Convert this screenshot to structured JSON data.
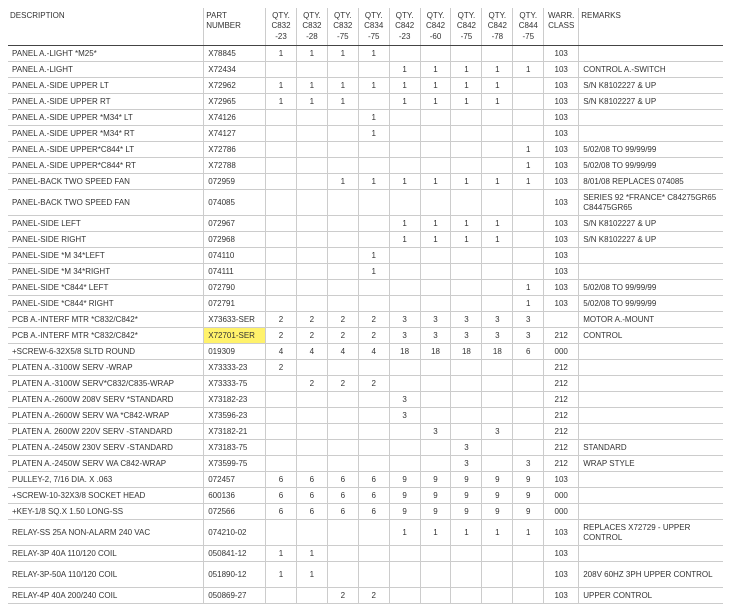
{
  "headers": {
    "desc": "DESCRIPTION",
    "part": "PART\nNUMBER",
    "q1": "QTY.\nC832\n-23",
    "q2": "QTY.\nC832\n-28",
    "q3": "QTY.\nC832\n-75",
    "q4": "QTY.\nC834\n-75",
    "q5": "QTY.\nC842\n-23",
    "q6": "QTY.\nC842\n-60",
    "q7": "QTY.\nC842\n-75",
    "q8": "QTY.\nC842\n-78",
    "q9": "QTY.\nC844\n-75",
    "warr": "WARR.\nCLASS",
    "rem": "REMARKS"
  },
  "rows": [
    {
      "desc": "PANEL A.-LIGHT *M25*",
      "part": "X78845",
      "q": [
        "1",
        "1",
        "1",
        "1",
        "",
        "",
        "",
        "",
        ""
      ],
      "warr": "103",
      "rem": ""
    },
    {
      "desc": "PANEL A.-LIGHT",
      "part": "X72434",
      "q": [
        "",
        "",
        "",
        "",
        "1",
        "1",
        "1",
        "1",
        "1"
      ],
      "warr": "103",
      "rem": "CONTROL A.-SWITCH"
    },
    {
      "desc": "PANEL A.-SIDE UPPER LT",
      "part": "X72962",
      "q": [
        "1",
        "1",
        "1",
        "1",
        "1",
        "1",
        "1",
        "1",
        ""
      ],
      "warr": "103",
      "rem": "S/N K8102227 & UP"
    },
    {
      "desc": "PANEL A.-SIDE UPPER RT",
      "part": "X72965",
      "q": [
        "1",
        "1",
        "1",
        "",
        "1",
        "1",
        "1",
        "1",
        ""
      ],
      "warr": "103",
      "rem": "S/N K8102227 & UP"
    },
    {
      "desc": "PANEL A.-SIDE UPPER *M34* LT",
      "part": "X74126",
      "q": [
        "",
        "",
        "",
        "1",
        "",
        "",
        "",
        "",
        ""
      ],
      "warr": "103",
      "rem": ""
    },
    {
      "desc": "PANEL A.-SIDE UPPER *M34* RT",
      "part": "X74127",
      "q": [
        "",
        "",
        "",
        "1",
        "",
        "",
        "",
        "",
        ""
      ],
      "warr": "103",
      "rem": ""
    },
    {
      "desc": "PANEL A.-SIDE UPPER*C844* LT",
      "part": "X72786",
      "q": [
        "",
        "",
        "",
        "",
        "",
        "",
        "",
        "",
        "1"
      ],
      "warr": "103",
      "rem": "5/02/08 TO 99/99/99"
    },
    {
      "desc": "PANEL A.-SIDE UPPER*C844* RT",
      "part": "X72788",
      "q": [
        "",
        "",
        "",
        "",
        "",
        "",
        "",
        "",
        "1"
      ],
      "warr": "103",
      "rem": "5/02/08 TO 99/99/99"
    },
    {
      "desc": "PANEL-BACK TWO SPEED FAN",
      "part": "072959",
      "q": [
        "",
        "",
        "1",
        "1",
        "1",
        "1",
        "1",
        "1",
        "1"
      ],
      "warr": "103",
      "rem": "8/01/08 REPLACES 074085"
    },
    {
      "desc": "PANEL-BACK TWO SPEED FAN",
      "part": "074085",
      "q": [
        "",
        "",
        "",
        "",
        "",
        "",
        "",
        "",
        ""
      ],
      "warr": "103",
      "rem": "SERIES 92 *FRANCE* C84275GR65 C84475GR65",
      "tall": true
    },
    {
      "desc": "PANEL-SIDE LEFT",
      "part": "072967",
      "q": [
        "",
        "",
        "",
        "",
        "1",
        "1",
        "1",
        "1",
        ""
      ],
      "warr": "103",
      "rem": "S/N K8102227 & UP"
    },
    {
      "desc": "PANEL-SIDE RIGHT",
      "part": "072968",
      "q": [
        "",
        "",
        "",
        "",
        "1",
        "1",
        "1",
        "1",
        ""
      ],
      "warr": "103",
      "rem": "S/N K8102227 & UP"
    },
    {
      "desc": "PANEL-SIDE *M 34*LEFT",
      "part": "074110",
      "q": [
        "",
        "",
        "",
        "1",
        "",
        "",
        "",
        "",
        ""
      ],
      "warr": "103",
      "rem": ""
    },
    {
      "desc": "PANEL-SIDE *M 34*RIGHT",
      "part": "074111",
      "q": [
        "",
        "",
        "",
        "1",
        "",
        "",
        "",
        "",
        ""
      ],
      "warr": "103",
      "rem": ""
    },
    {
      "desc": "PANEL-SIDE *C844* LEFT",
      "part": "072790",
      "q": [
        "",
        "",
        "",
        "",
        "",
        "",
        "",
        "",
        "1"
      ],
      "warr": "103",
      "rem": "5/02/08 TO 99/99/99"
    },
    {
      "desc": "PANEL-SIDE *C844* RIGHT",
      "part": "072791",
      "q": [
        "",
        "",
        "",
        "",
        "",
        "",
        "",
        "",
        "1"
      ],
      "warr": "103",
      "rem": "5/02/08 TO 99/99/99"
    },
    {
      "desc": "PCB A.-INTERF MTR *C832/C842*",
      "part": "X73633-SER",
      "q": [
        "2",
        "2",
        "2",
        "2",
        "3",
        "3",
        "3",
        "3",
        "3"
      ],
      "warr": "",
      "rem": "MOTOR A.-MOUNT"
    },
    {
      "desc": "PCB A.-INTERF MTR *C832/C842*",
      "part": "X72701-SER",
      "q": [
        "2",
        "2",
        "2",
        "2",
        "3",
        "3",
        "3",
        "3",
        "3"
      ],
      "warr": "212",
      "rem": "CONTROL",
      "hl": "part"
    },
    {
      "desc": "  +SCREW-6-32X5/8 SLTD ROUND",
      "part": "019309",
      "q": [
        "4",
        "4",
        "4",
        "4",
        "18",
        "18",
        "18",
        "18",
        "6"
      ],
      "warr": "000",
      "rem": ""
    },
    {
      "desc": "PLATEN A.-3100W SERV -WRAP",
      "part": "X73333-23",
      "q": [
        "2",
        "",
        "",
        "",
        "",
        "",
        "",
        "",
        ""
      ],
      "warr": "212",
      "rem": ""
    },
    {
      "desc": "PLATEN A.-3100W SERV*C832/C835-WRAP",
      "part": "X73333-75",
      "q": [
        "",
        "2",
        "2",
        "2",
        "",
        "",
        "",
        "",
        ""
      ],
      "warr": "212",
      "rem": ""
    },
    {
      "desc": "PLATEN A.-2600W 208V SERV *STANDARD",
      "part": "X73182-23",
      "q": [
        "",
        "",
        "",
        "",
        "3",
        "",
        "",
        "",
        ""
      ],
      "warr": "212",
      "rem": ""
    },
    {
      "desc": "PLATEN A.-2600W SERV WA *C842-WRAP",
      "part": "X73596-23",
      "q": [
        "",
        "",
        "",
        "",
        "3",
        "",
        "",
        "",
        ""
      ],
      "warr": "212",
      "rem": ""
    },
    {
      "desc": "PLATEN A. 2600W 220V SERV -STANDARD",
      "part": "X73182-21",
      "q": [
        "",
        "",
        "",
        "",
        "",
        "3",
        "",
        "3",
        ""
      ],
      "warr": "212",
      "rem": ""
    },
    {
      "desc": "PLATEN A.-2450W 230V SERV -STANDARD",
      "part": "X73183-75",
      "q": [
        "",
        "",
        "",
        "",
        "",
        "",
        "3",
        "",
        ""
      ],
      "warr": "212",
      "rem": "STANDARD"
    },
    {
      "desc": "PLATEN A.-2450W SERV WA C842-WRAP",
      "part": "X73599-75",
      "q": [
        "",
        "",
        "",
        "",
        "",
        "",
        "3",
        "",
        "3"
      ],
      "warr": "212",
      "rem": "WRAP STYLE"
    },
    {
      "desc": "PULLEY-2, 7/16 DIA. X .063",
      "part": "072457",
      "q": [
        "6",
        "6",
        "6",
        "6",
        "9",
        "9",
        "9",
        "9",
        "9"
      ],
      "warr": "103",
      "rem": ""
    },
    {
      "desc": "  +SCREW-10-32X3/8 SOCKET HEAD",
      "part": "600136",
      "q": [
        "6",
        "6",
        "6",
        "6",
        "9",
        "9",
        "9",
        "9",
        "9"
      ],
      "warr": "000",
      "rem": ""
    },
    {
      "desc": "  +KEY-1/8 SQ.X 1.50 LONG-SS",
      "part": "072566",
      "q": [
        "6",
        "6",
        "6",
        "6",
        "9",
        "9",
        "9",
        "9",
        "9"
      ],
      "warr": "000",
      "rem": ""
    },
    {
      "desc": "RELAY-SS 25A NON-ALARM 240 VAC",
      "part": "074210-02",
      "q": [
        "",
        "",
        "",
        "",
        "1",
        "1",
        "1",
        "1",
        "1"
      ],
      "warr": "103",
      "rem": "REPLACES X72729 - UPPER CONTROL",
      "tall": true
    },
    {
      "desc": "RELAY-3P 40A 110/120 COIL",
      "part": "050841-12",
      "q": [
        "1",
        "1",
        "",
        "",
        "",
        "",
        "",
        "",
        ""
      ],
      "warr": "103",
      "rem": ""
    },
    {
      "desc": "RELAY-3P-50A 110/120 COIL",
      "part": "051890-12",
      "q": [
        "1",
        "1",
        "",
        "",
        "",
        "",
        "",
        "",
        ""
      ],
      "warr": "103",
      "rem": "208V 60HZ 3PH UPPER CONTROL",
      "tall": true
    },
    {
      "desc": "RELAY-4P 40A 200/240 COIL",
      "part": "050869-27",
      "q": [
        "",
        "",
        "2",
        "2",
        "",
        "",
        "",
        "",
        ""
      ],
      "warr": "103",
      "rem": "UPPER CONTROL"
    }
  ]
}
